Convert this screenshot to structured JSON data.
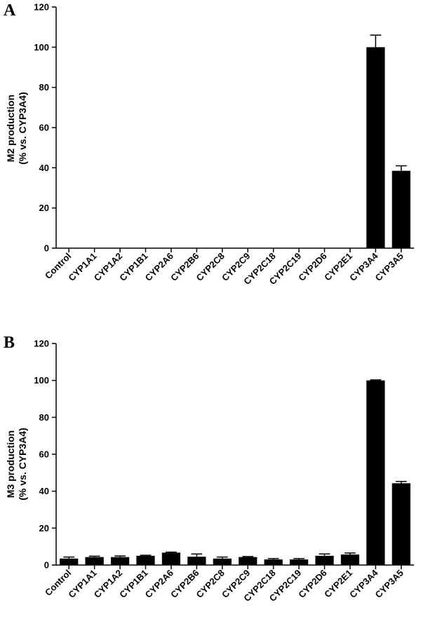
{
  "chart_data": [
    {
      "type": "bar",
      "panel": "A",
      "ylabel_line1": "M2 production",
      "ylabel_line2": "(% vs. CYP3A4)",
      "ylim": [
        0,
        120
      ],
      "yticks": [
        0,
        20,
        40,
        60,
        80,
        100,
        120
      ],
      "categories": [
        "Control",
        "CYP1A1",
        "CYP1A2",
        "CYP1B1",
        "CYP2A6",
        "CYP2B6",
        "CYP2C8",
        "CYP2C9",
        "CYP2C18",
        "CYP2C19",
        "CYP2D6",
        "CYP2E1",
        "CYP3A4",
        "CYP3A5"
      ],
      "values": [
        0,
        0,
        0,
        0,
        0,
        0,
        0,
        0,
        0,
        0,
        0,
        0,
        100,
        38.5
      ],
      "errors": [
        0,
        0,
        0,
        0,
        0,
        0,
        0,
        0,
        0,
        0,
        0,
        0,
        6,
        2.5
      ],
      "color": "#000000"
    },
    {
      "type": "bar",
      "panel": "B",
      "ylabel_line1": "M3 production",
      "ylabel_line2": "(% vs. CYP3A4)",
      "ylim": [
        0,
        120
      ],
      "yticks": [
        0,
        20,
        40,
        60,
        80,
        100,
        120
      ],
      "categories": [
        "Control",
        "CYP1A1",
        "CYP1A2",
        "CYP1B1",
        "CYP2A6",
        "CYP2B6",
        "CYP2C8",
        "CYP2C9",
        "CYP2C18",
        "CYP2C19",
        "CYP2D6",
        "CYP2E1",
        "CYP3A4",
        "CYP3A5"
      ],
      "values": [
        3.5,
        4.3,
        4.3,
        5.0,
        6.7,
        4.5,
        3.5,
        4.3,
        3.0,
        3.0,
        5.0,
        5.7,
        100,
        44.3
      ],
      "errors": [
        0.8,
        0.5,
        0.6,
        0.3,
        0.3,
        1.5,
        0.8,
        0.3,
        0.5,
        0.5,
        1.0,
        0.8,
        0.3,
        1.0
      ],
      "color": "#000000"
    }
  ]
}
